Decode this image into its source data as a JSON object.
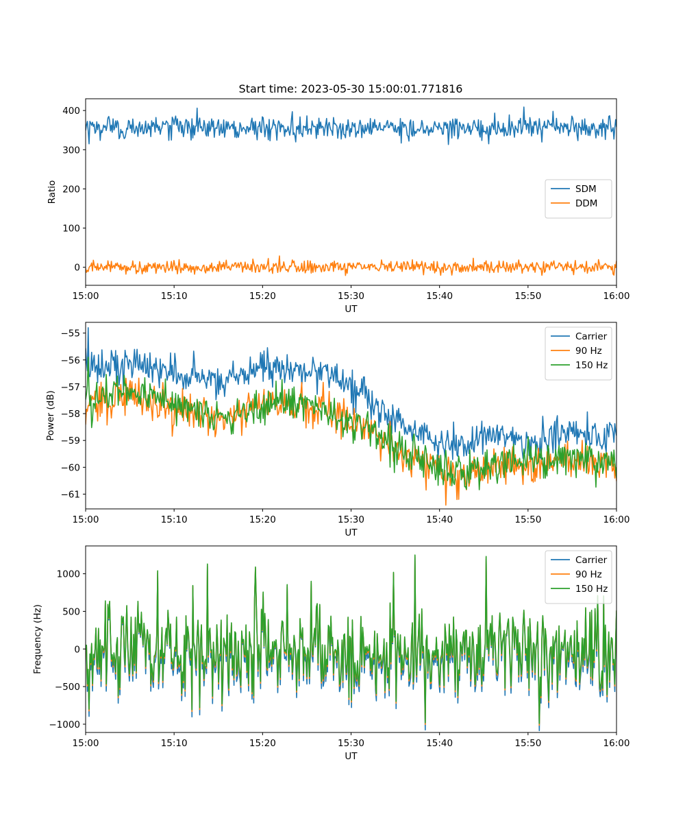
{
  "figure": {
    "title": "Start time: 2023-05-30 15:00:01.771816"
  },
  "chart_data": [
    {
      "type": "line",
      "title": "Start time: 2023-05-30 15:00:01.771816",
      "xlabel": "UT",
      "ylabel": "Ratio",
      "x_ticks": [
        "15:00",
        "15:10",
        "15:20",
        "15:30",
        "15:40",
        "15:50",
        "16:00"
      ],
      "xlim": [
        "15:00",
        "16:00"
      ],
      "ylim": [
        -46,
        430
      ],
      "y_ticks": [
        0,
        100,
        200,
        300,
        400
      ],
      "legend_position": "center-right",
      "series": [
        {
          "name": "SDM",
          "color": "#1f77b4",
          "mean": 356,
          "noise": 14,
          "peaks": [
            [
              0.21,
              406
            ],
            [
              0.825,
              409
            ],
            [
              0.39,
              397
            ],
            [
              0.88,
              398
            ]
          ],
          "dips": [
            [
              0.006,
              315
            ],
            [
              0.595,
              317
            ],
            [
              0.76,
              315
            ],
            [
              0.995,
              327
            ]
          ]
        },
        {
          "name": "DDM",
          "color": "#ff7f0e",
          "mean": 0,
          "noise": 8,
          "peaks": [
            [
              0.365,
              29
            ],
            [
              0.73,
              23
            ]
          ],
          "dips": [
            [
              0.69,
              -20
            ],
            [
              0.995,
              -20
            ]
          ]
        }
      ]
    },
    {
      "type": "line",
      "xlabel": "UT",
      "ylabel": "Power (dB)",
      "x_ticks": [
        "15:00",
        "15:10",
        "15:20",
        "15:30",
        "15:40",
        "15:50",
        "16:00"
      ],
      "xlim": [
        "15:00",
        "16:00"
      ],
      "ylim": [
        -61.55,
        -54.6
      ],
      "y_ticks": [
        -61,
        -60,
        -59,
        -58,
        -57,
        -56,
        -55
      ],
      "legend_position": "top-right",
      "series": [
        {
          "name": "Carrier",
          "color": "#1f77b4",
          "noise": 0.32,
          "trend": [
            [
              0,
              -56.4
            ],
            [
              0.08,
              -56.1
            ],
            [
              0.2,
              -56.6
            ],
            [
              0.26,
              -56.8
            ],
            [
              0.33,
              -56.3
            ],
            [
              0.45,
              -56.4
            ],
            [
              0.5,
              -57.0
            ],
            [
              0.54,
              -57.5
            ],
            [
              0.58,
              -58.2
            ],
            [
              0.62,
              -58.6
            ],
            [
              0.68,
              -59.1
            ],
            [
              0.72,
              -59.1
            ],
            [
              0.78,
              -58.7
            ],
            [
              0.85,
              -59.1
            ],
            [
              0.9,
              -58.8
            ],
            [
              1.0,
              -58.8
            ]
          ],
          "peaks": [
            [
              0.005,
              -54.8
            ]
          ]
        },
        {
          "name": "90 Hz",
          "color": "#ff7f0e",
          "noise": 0.35,
          "trend": [
            [
              0,
              -57.7
            ],
            [
              0.08,
              -57.2
            ],
            [
              0.15,
              -57.7
            ],
            [
              0.2,
              -58.0
            ],
            [
              0.28,
              -58.2
            ],
            [
              0.35,
              -57.6
            ],
            [
              0.42,
              -57.8
            ],
            [
              0.48,
              -58.1
            ],
            [
              0.54,
              -58.6
            ],
            [
              0.58,
              -59.2
            ],
            [
              0.62,
              -59.6
            ],
            [
              0.68,
              -60.1
            ],
            [
              0.72,
              -60.2
            ],
            [
              0.78,
              -59.8
            ],
            [
              0.85,
              -59.9
            ],
            [
              0.9,
              -59.7
            ],
            [
              1.0,
              -59.9
            ]
          ],
          "dips": [
            [
              0.7,
              -61.2
            ]
          ]
        },
        {
          "name": "150 Hz",
          "color": "#2ca02c",
          "noise": 0.35,
          "trend": [
            [
              0,
              -57.5
            ],
            [
              0.08,
              -57.1
            ],
            [
              0.15,
              -57.5
            ],
            [
              0.2,
              -57.9
            ],
            [
              0.28,
              -58.1
            ],
            [
              0.35,
              -57.5
            ],
            [
              0.42,
              -57.6
            ],
            [
              0.48,
              -58.2
            ],
            [
              0.54,
              -58.6
            ],
            [
              0.58,
              -59.3
            ],
            [
              0.62,
              -59.7
            ],
            [
              0.68,
              -60.2
            ],
            [
              0.72,
              -60.1
            ],
            [
              0.78,
              -59.8
            ],
            [
              0.85,
              -59.7
            ],
            [
              0.9,
              -59.7
            ],
            [
              1.0,
              -59.8
            ]
          ],
          "peaks": [
            [
              0.005,
              -55.9
            ]
          ]
        }
      ]
    },
    {
      "type": "line",
      "xlabel": "UT",
      "ylabel": "Frequency (Hz)",
      "x_ticks": [
        "15:00",
        "15:10",
        "15:20",
        "15:30",
        "15:40",
        "15:50",
        "16:00"
      ],
      "xlim": [
        "15:00",
        "16:00"
      ],
      "ylim": [
        -1110,
        1370
      ],
      "y_ticks": [
        -1000,
        -500,
        0,
        500,
        1000
      ],
      "legend_position": "top-right",
      "series": [
        {
          "name": "Carrier",
          "color": "#1f77b4",
          "offset": -60
        },
        {
          "name": "90 Hz",
          "color": "#ff7f0e",
          "offset": -15
        },
        {
          "name": "150 Hz",
          "color": "#2ca02c",
          "offset": 0
        }
      ],
      "peaks": [
        [
          0.135,
          1040
        ],
        [
          0.23,
          1130
        ],
        [
          0.32,
          1090
        ],
        [
          0.425,
          900
        ],
        [
          0.62,
          1250
        ],
        [
          0.755,
          1230
        ],
        [
          0.58,
          1020
        ]
      ],
      "dips": [
        [
          0.006,
          -800
        ],
        [
          0.64,
          -980
        ],
        [
          0.855,
          -990
        ],
        [
          0.215,
          -780
        ]
      ],
      "noise": 380
    }
  ]
}
